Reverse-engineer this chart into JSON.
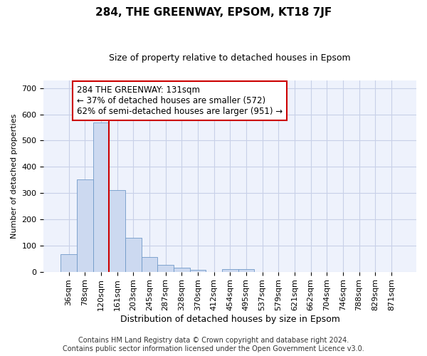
{
  "title": "284, THE GREENWAY, EPSOM, KT18 7JF",
  "subtitle": "Size of property relative to detached houses in Epsom",
  "xlabel": "Distribution of detached houses by size in Epsom",
  "ylabel": "Number of detached properties",
  "bar_color": "#ccd9f0",
  "bar_edge_color": "#7099c8",
  "vline_color": "#cc0000",
  "vline_x_index": 2,
  "categories": [
    "36sqm",
    "78sqm",
    "120sqm",
    "161sqm",
    "203sqm",
    "245sqm",
    "287sqm",
    "328sqm",
    "370sqm",
    "412sqm",
    "454sqm",
    "495sqm",
    "537sqm",
    "579sqm",
    "621sqm",
    "662sqm",
    "704sqm",
    "746sqm",
    "788sqm",
    "829sqm",
    "871sqm"
  ],
  "values": [
    68,
    352,
    568,
    312,
    128,
    57,
    25,
    14,
    8,
    0,
    9,
    10,
    0,
    0,
    0,
    0,
    0,
    0,
    0,
    0,
    0
  ],
  "ylim": [
    0,
    730
  ],
  "yticks": [
    0,
    100,
    200,
    300,
    400,
    500,
    600,
    700
  ],
  "annotation_line1": "284 THE GREENWAY: 131sqm",
  "annotation_line2": "← 37% of detached houses are smaller (572)",
  "annotation_line3": "62% of semi-detached houses are larger (951) →",
  "footer": "Contains HM Land Registry data © Crown copyright and database right 2024.\nContains public sector information licensed under the Open Government Licence v3.0.",
  "background_color": "#eef2fc",
  "grid_color": "#c8d0e8",
  "title_fontsize": 11,
  "subtitle_fontsize": 9,
  "xlabel_fontsize": 9,
  "ylabel_fontsize": 8,
  "tick_fontsize": 8,
  "footer_fontsize": 7,
  "ann_fontsize": 8.5
}
